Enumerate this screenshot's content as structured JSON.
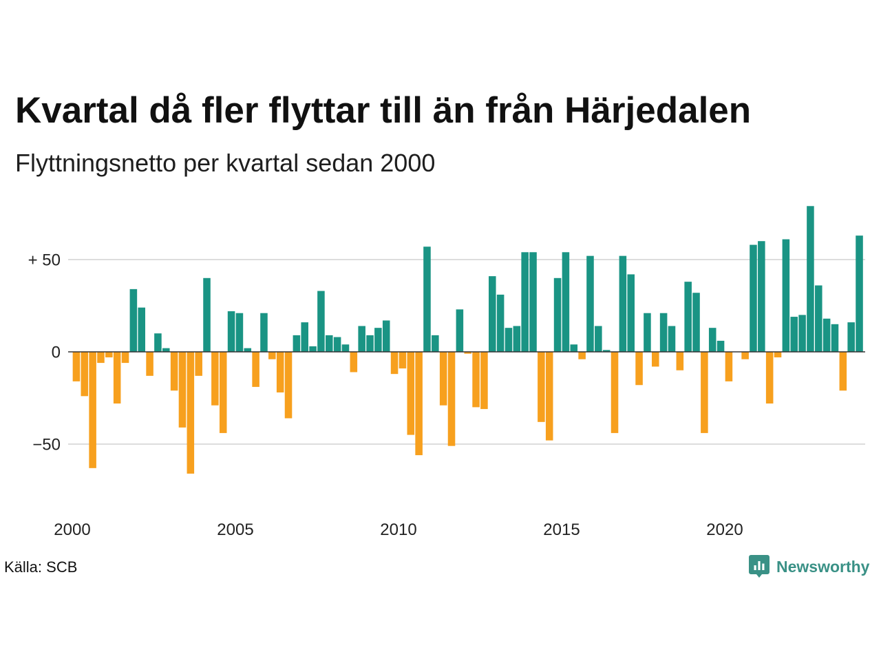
{
  "chart_data": {
    "type": "bar",
    "title": "Kvartal då fler flyttar till än från Härjedalen",
    "subtitle": "Flyttningsnetto per kvartal sedan 2000",
    "source": "Källa: SCB",
    "xlabel": "",
    "ylabel": "",
    "x": [
      "2000-Q1",
      "2000-Q2",
      "2000-Q3",
      "2000-Q4",
      "2001-Q1",
      "2001-Q2",
      "2001-Q3",
      "2001-Q4",
      "2002-Q1",
      "2002-Q2",
      "2002-Q3",
      "2002-Q4",
      "2003-Q1",
      "2003-Q2",
      "2003-Q3",
      "2003-Q4",
      "2004-Q1",
      "2004-Q2",
      "2004-Q3",
      "2004-Q4",
      "2005-Q1",
      "2005-Q2",
      "2005-Q3",
      "2005-Q4",
      "2006-Q1",
      "2006-Q2",
      "2006-Q3",
      "2006-Q4",
      "2007-Q1",
      "2007-Q2",
      "2007-Q3",
      "2007-Q4",
      "2008-Q1",
      "2008-Q2",
      "2008-Q3",
      "2008-Q4",
      "2009-Q1",
      "2009-Q2",
      "2009-Q3",
      "2009-Q4",
      "2010-Q1",
      "2010-Q2",
      "2010-Q3",
      "2010-Q4",
      "2011-Q1",
      "2011-Q2",
      "2011-Q3",
      "2011-Q4",
      "2012-Q1",
      "2012-Q2",
      "2012-Q3",
      "2012-Q4",
      "2013-Q1",
      "2013-Q2",
      "2013-Q3",
      "2013-Q4",
      "2014-Q1",
      "2014-Q2",
      "2014-Q3",
      "2014-Q4",
      "2015-Q1",
      "2015-Q2",
      "2015-Q3",
      "2015-Q4",
      "2016-Q1",
      "2016-Q2",
      "2016-Q3",
      "2016-Q4",
      "2017-Q1",
      "2017-Q2",
      "2017-Q3",
      "2017-Q4",
      "2018-Q1",
      "2018-Q2",
      "2018-Q3",
      "2018-Q4",
      "2019-Q1",
      "2019-Q2",
      "2019-Q3",
      "2019-Q4",
      "2020-Q1",
      "2020-Q2",
      "2020-Q3",
      "2020-Q4",
      "2021-Q1",
      "2021-Q2",
      "2021-Q3",
      "2021-Q4",
      "2022-Q1",
      "2022-Q2",
      "2022-Q3",
      "2022-Q4",
      "2023-Q1",
      "2023-Q2",
      "2023-Q3",
      "2023-Q4",
      "2024-Q1"
    ],
    "values": [
      -16,
      -24,
      -63,
      -6,
      -3,
      -28,
      -6,
      34,
      24,
      -13,
      10,
      2,
      -21,
      -41,
      -66,
      -13,
      40,
      -29,
      -44,
      22,
      21,
      2,
      -19,
      21,
      -4,
      -22,
      -36,
      9,
      16,
      3,
      33,
      9,
      8,
      4,
      -11,
      14,
      9,
      13,
      17,
      -12,
      -9,
      -45,
      -56,
      57,
      9,
      -29,
      -51,
      23,
      -1,
      -30,
      -31,
      41,
      31,
      13,
      14,
      54,
      54,
      -38,
      -48,
      40,
      54,
      4,
      -4,
      52,
      14,
      1,
      -44,
      52,
      42,
      -18,
      21,
      -8,
      21,
      14,
      -10,
      38,
      32,
      -44,
      13,
      6,
      -16,
      0,
      -4,
      58,
      60,
      -28,
      -3,
      61,
      19,
      20,
      79,
      36,
      18,
      15,
      -21,
      16,
      63
    ],
    "xlim": [
      "2000-Q1",
      "2024-Q1"
    ],
    "ylim": [
      -80,
      80
    ],
    "xticks": {
      "values": [
        2000,
        2005,
        2010,
        2015,
        2020
      ],
      "labels": [
        "2000",
        "2005",
        "2010",
        "2015",
        "2020"
      ]
    },
    "yticks": {
      "values": [
        -50,
        0,
        50
      ],
      "labels": [
        "−50",
        "0",
        "+ 50"
      ]
    },
    "grid": true,
    "legend": false,
    "colors": {
      "positive": "#1a9484",
      "negative": "#f7a01e",
      "gridline": "#dddddd",
      "zero_line": "#333333"
    }
  },
  "logo": {
    "text": "Newsworthy",
    "icon": "newsworthy-logo-icon",
    "color": "#3a9186"
  }
}
